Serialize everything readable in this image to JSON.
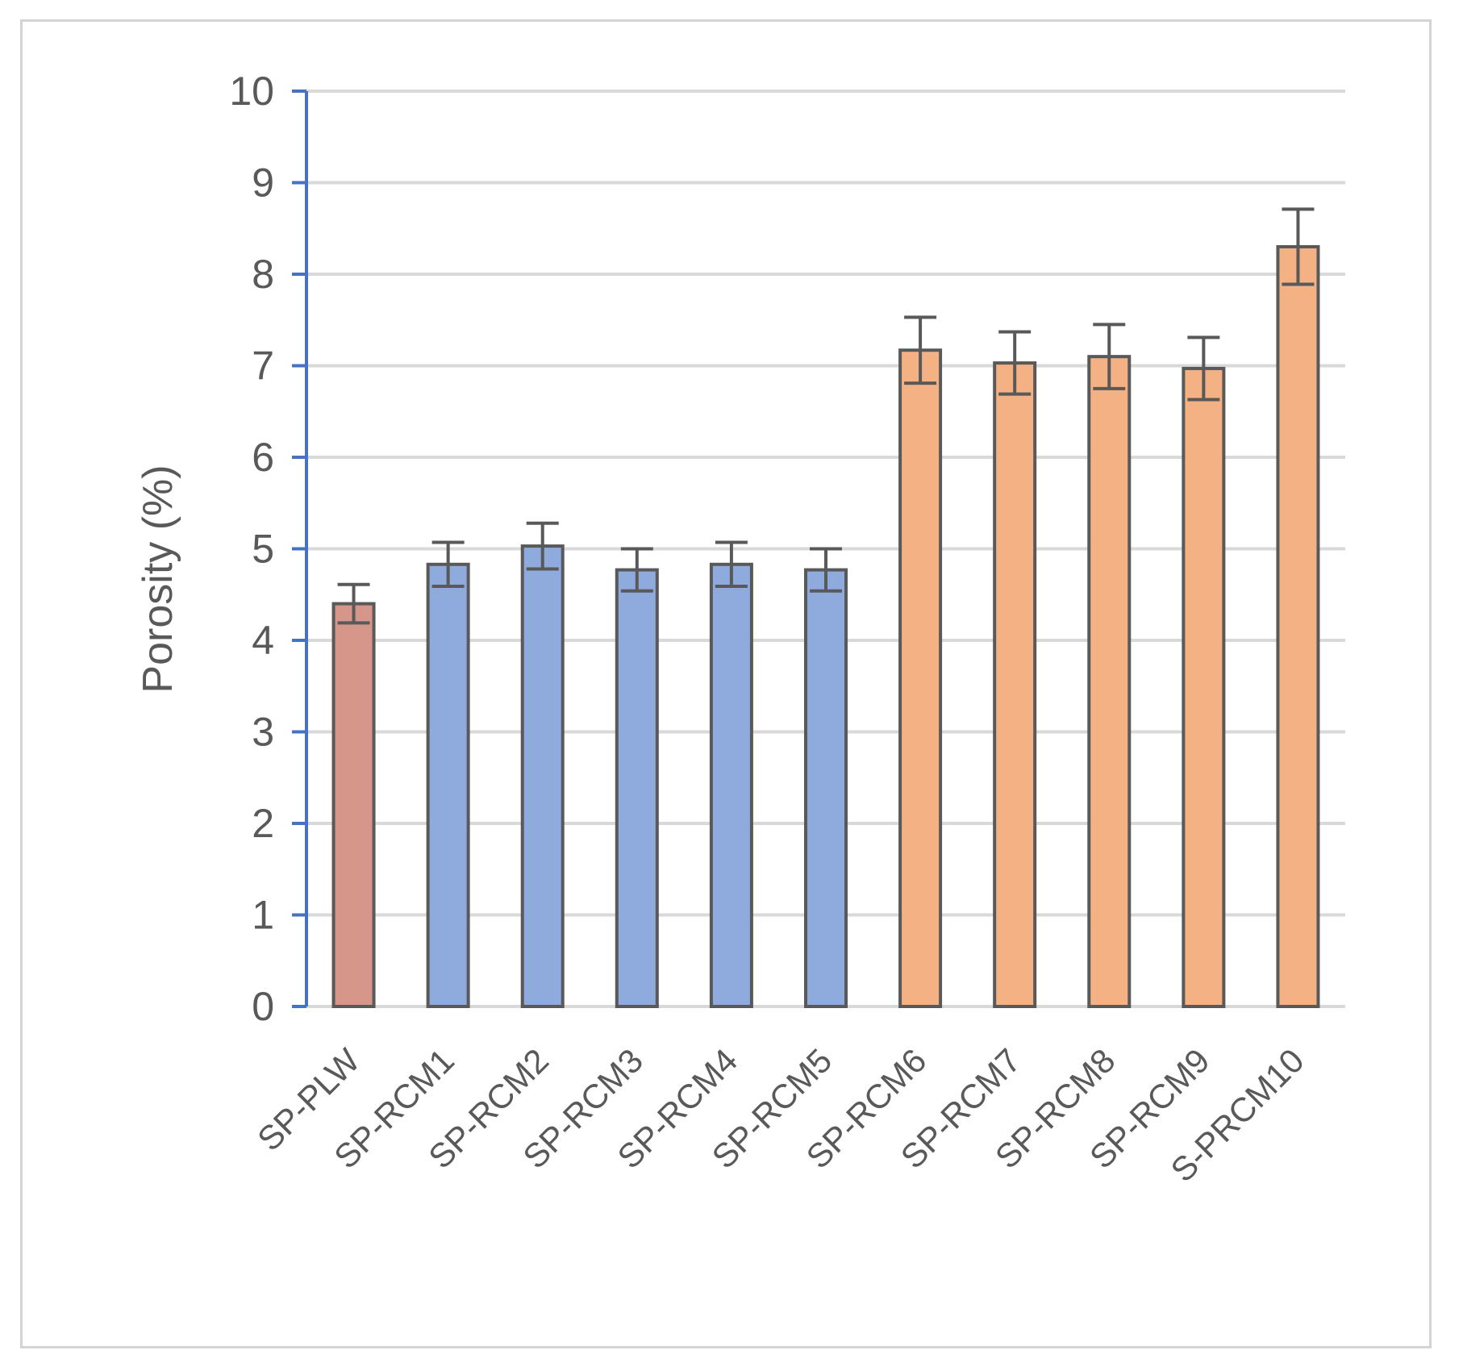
{
  "chart_data": {
    "type": "bar",
    "title": "",
    "xlabel": "",
    "ylabel": "Porosity (%)",
    "ylim": [
      0,
      10
    ],
    "yticks": [
      0,
      1,
      2,
      3,
      4,
      5,
      6,
      7,
      8,
      9,
      10
    ],
    "grid": true,
    "legend": "none",
    "categories": [
      "SP-PLW",
      "SP-RCM1",
      "SP-RCM2",
      "SP-RCM3",
      "SP-RCM4",
      "SP-RCM5",
      "SP-RCM6",
      "SP-RCM7",
      "SP-RCM8",
      "SP-RCM9",
      "S-PRCM10"
    ],
    "values": [
      4.4,
      4.83,
      5.03,
      4.77,
      4.83,
      4.77,
      7.17,
      7.03,
      7.1,
      6.97,
      8.3
    ],
    "errors": [
      0.21,
      0.24,
      0.25,
      0.23,
      0.24,
      0.23,
      0.36,
      0.34,
      0.35,
      0.34,
      0.41
    ],
    "bar_colors": [
      "#d6968a",
      "#8faadc",
      "#8faadc",
      "#8faadc",
      "#8faadc",
      "#8faadc",
      "#f4b183",
      "#f4b183",
      "#f4b183",
      "#f4b183",
      "#f4b183"
    ],
    "colors": {
      "bar_outline": "#595959",
      "error_bar": "#595959",
      "gridline": "#d9d9d9",
      "y_axis": "#4472c4",
      "text": "#595959"
    }
  }
}
